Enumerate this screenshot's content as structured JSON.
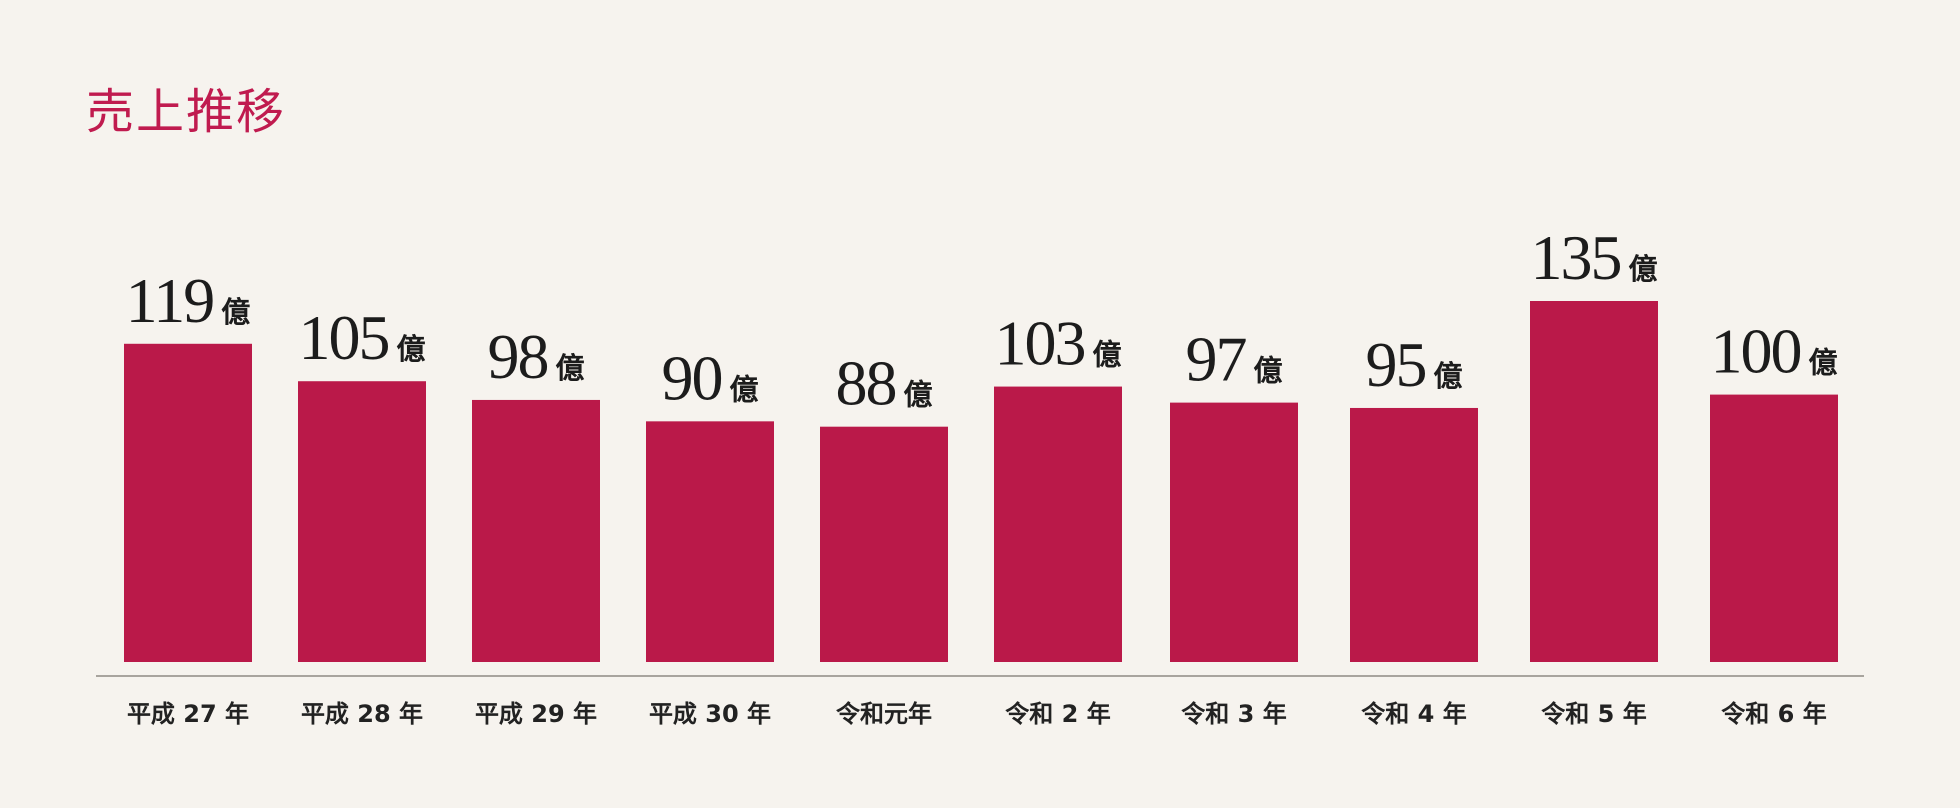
{
  "chart_data": {
    "type": "bar",
    "title": "売上推移",
    "xlabel": "",
    "ylabel": "",
    "unit": "億",
    "categories": [
      "平成 27 年",
      "平成 28 年",
      "平成 29 年",
      "平成 30 年",
      "令和元年",
      "令和 2 年",
      "令和 3 年",
      "令和 4 年",
      "令和 5 年",
      "令和 6 年"
    ],
    "values": [
      119,
      105,
      98,
      90,
      88,
      103,
      97,
      95,
      135,
      100
    ],
    "ylim": [
      0,
      135
    ],
    "grid": false,
    "legend": "none"
  },
  "colors": {
    "bar": "#ba1949",
    "title": "#c01b4f",
    "baseline": "#a8a49e",
    "text": "#1c1c1c",
    "background": "#f6f3ee"
  }
}
